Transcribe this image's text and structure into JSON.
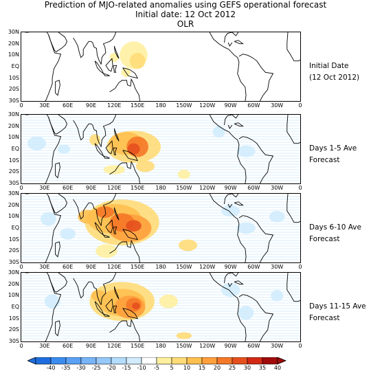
{
  "title": {
    "line1": "Prediction of MJO-related anomalies using GEFS operational forecast",
    "line2": "Initial date: 12 Oct 2012",
    "line3": "OLR"
  },
  "lat_labels": [
    "30N",
    "20N",
    "10N",
    "EQ",
    "10S",
    "20S",
    "30S"
  ],
  "lon_labels": [
    "0",
    "30E",
    "60E",
    "90E",
    "120E",
    "150E",
    "180",
    "150W",
    "120W",
    "90W",
    "60W",
    "30W",
    "0"
  ],
  "panels": [
    {
      "label_line1": "Initial Date",
      "label_line2": "(12 Oct 2012)"
    },
    {
      "label_line1": "Days 1-5 Ave",
      "label_line2": "Forecast"
    },
    {
      "label_line1": "Days 6-10 Ave",
      "label_line2": "Forecast"
    },
    {
      "label_line1": "Days 11-15 Ave",
      "label_line2": "Forecast"
    }
  ],
  "colorbar": {
    "labels": [
      "-40",
      "-35",
      "-30",
      "-25",
      "-20",
      "-15",
      "-10",
      "-5",
      "5",
      "10",
      "15",
      "20",
      "25",
      "30",
      "35",
      "40"
    ],
    "colors": [
      "#1e6ee0",
      "#3c8cf0",
      "#5aa0f5",
      "#78b4f8",
      "#96c8fa",
      "#b4dcfc",
      "#d2ecfd",
      "#ffffff",
      "#fff0a0",
      "#ffdc78",
      "#ffc050",
      "#ffa03c",
      "#f57828",
      "#e6501e",
      "#d22814",
      "#a00a0a"
    ]
  }
}
